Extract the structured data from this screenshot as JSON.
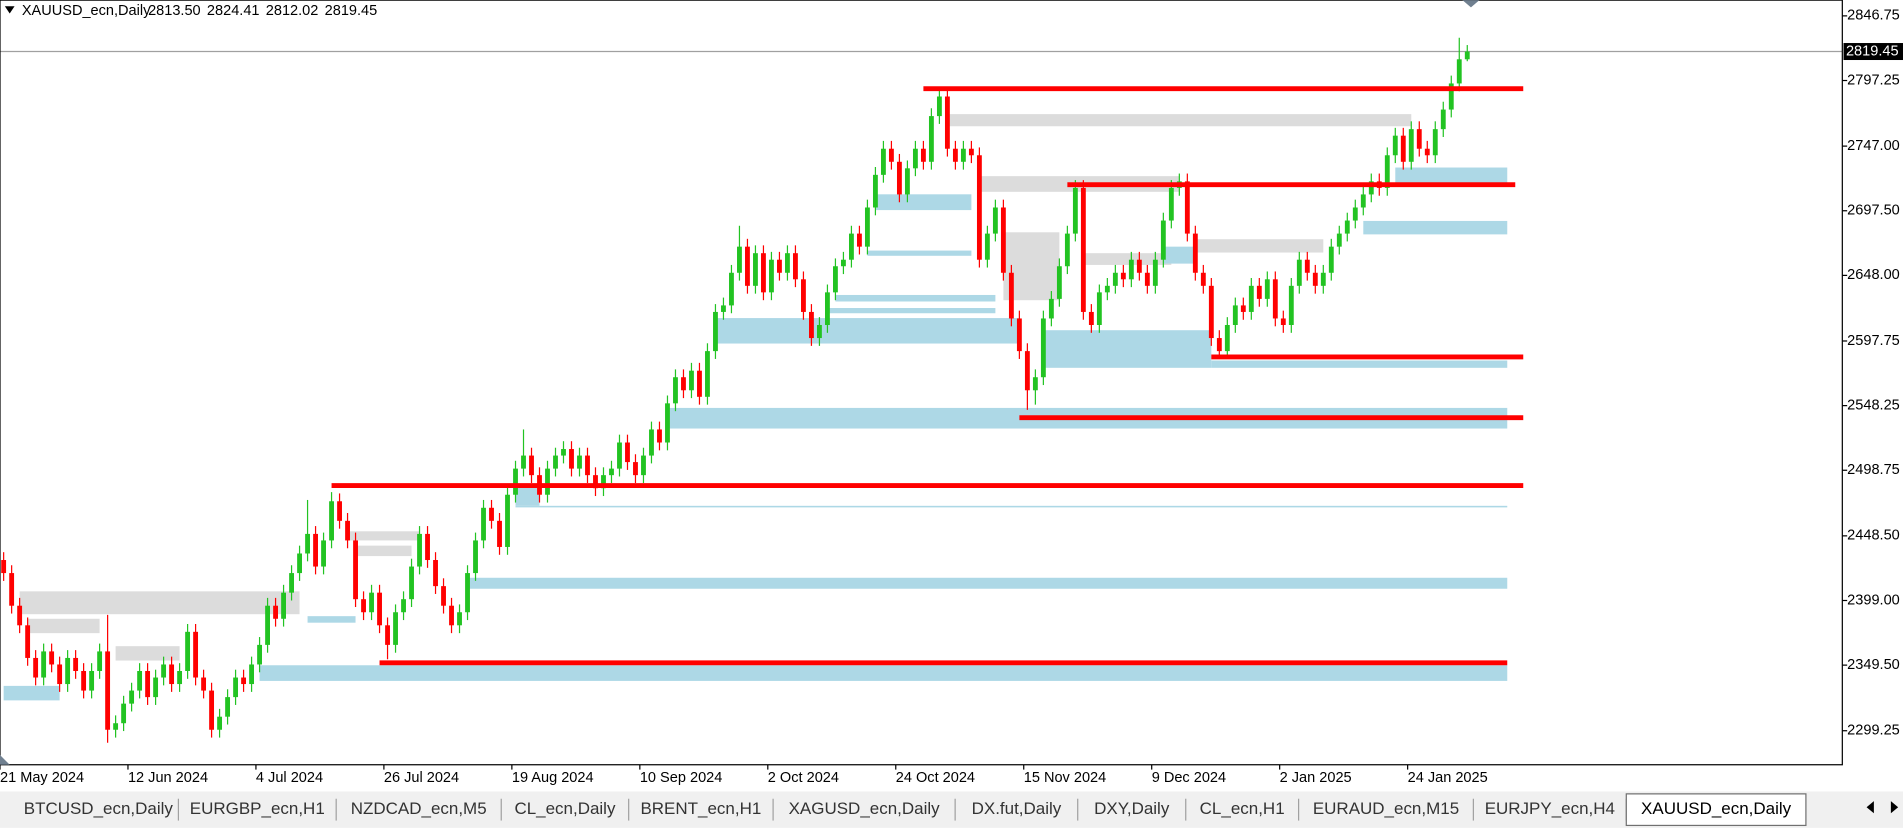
{
  "chart_data": {
    "type": "candlestick",
    "title": "XAUUSD_ecn,Daily",
    "header_values": [
      "2813.50",
      "2824.41",
      "2812.02",
      "2819.45"
    ],
    "up_color": "#22c322",
    "down_color": "#ff0000",
    "ylim": [
      2273.2,
      2858.8
    ],
    "yticks": [
      2846.75,
      2797.25,
      {
        "value": 2747,
        "label": "2747.00"
      },
      {
        "value": 2697.5,
        "label": "2697.50"
      },
      {
        "value": 2648,
        "label": "2648.00"
      },
      2597.75,
      2548.25,
      2498.75,
      {
        "value": 2448.5,
        "label": "2448.50"
      },
      {
        "value": 2399,
        "label": "2399.00"
      },
      {
        "value": 2349.5,
        "label": "2349.50"
      },
      2299.25
    ],
    "current_price": 2819.45,
    "categories": [
      "21 May 2024",
      null,
      null,
      null,
      null,
      null,
      null,
      null,
      null,
      null,
      null,
      null,
      null,
      null,
      null,
      null,
      "12 Jun 2024",
      null,
      null,
      null,
      null,
      null,
      null,
      null,
      null,
      null,
      null,
      null,
      null,
      null,
      null,
      null,
      "4 Jul 2024",
      null,
      null,
      null,
      null,
      null,
      null,
      null,
      null,
      null,
      null,
      null,
      null,
      null,
      null,
      null,
      "26 Jul 2024",
      null,
      null,
      null,
      null,
      null,
      null,
      null,
      null,
      null,
      null,
      null,
      null,
      null,
      null,
      null,
      "19 Aug 2024",
      null,
      null,
      null,
      null,
      null,
      null,
      null,
      null,
      null,
      null,
      null,
      null,
      null,
      null,
      null,
      "10 Sep 2024",
      null,
      null,
      null,
      null,
      null,
      null,
      null,
      null,
      null,
      null,
      null,
      null,
      null,
      null,
      null,
      "2 Oct 2024",
      null,
      null,
      null,
      null,
      null,
      null,
      null,
      null,
      null,
      null,
      null,
      null,
      null,
      null,
      null,
      "24 Oct 2024",
      null,
      null,
      null,
      null,
      null,
      null,
      null,
      null,
      null,
      null,
      null,
      null,
      null,
      null,
      null,
      "15 Nov 2024",
      null,
      null,
      null,
      null,
      null,
      null,
      null,
      null,
      null,
      null,
      null,
      null,
      null,
      null,
      null,
      "9 Dec 2024",
      null,
      null,
      null,
      null,
      null,
      null,
      null,
      null,
      null,
      null,
      null,
      null,
      null,
      null,
      null,
      "2 Jan 2025",
      null,
      null,
      null,
      null,
      null,
      null,
      null,
      null,
      null,
      null,
      null,
      null,
      null,
      null,
      null,
      "24 Jan 2025",
      null,
      null,
      null,
      null,
      null,
      null,
      null
    ],
    "open": [
      2430,
      2420,
      2395,
      2380,
      2355,
      2340,
      2360,
      2350,
      2335,
      2355,
      2345,
      2330,
      2345,
      2360,
      2300,
      2305,
      2320,
      2330,
      2345,
      2325,
      2340,
      2350,
      2335,
      2345,
      2375,
      2340,
      2330,
      2300,
      2310,
      2325,
      2340,
      2335,
      2350,
      2365,
      2395,
      2385,
      2405,
      2420,
      2435,
      2450,
      2425,
      2445,
      2475,
      2460,
      2445,
      2400,
      2390,
      2405,
      2380,
      2365,
      2390,
      2400,
      2425,
      2450,
      2430,
      2410,
      2395,
      2380,
      2390,
      2420,
      2445,
      2470,
      2460,
      2440,
      2480,
      2500,
      2510,
      2495,
      2480,
      2500,
      2510,
      2515,
      2500,
      2510,
      2495,
      2485,
      2495,
      2500,
      2520,
      2505,
      2495,
      2510,
      2530,
      2520,
      2550,
      2570,
      2560,
      2575,
      2555,
      2590,
      2620,
      2625,
      2650,
      2670,
      2640,
      2665,
      2635,
      2660,
      2650,
      2665,
      2645,
      2620,
      2600,
      2610,
      2635,
      2655,
      2660,
      2680,
      2670,
      2700,
      2725,
      2745,
      2735,
      2710,
      2730,
      2745,
      2735,
      2770,
      2785,
      2745,
      2735,
      2745,
      2740,
      2660,
      2680,
      2700,
      2650,
      2615,
      2590,
      2560,
      2570,
      2615,
      2630,
      2655,
      2680,
      2715,
      2620,
      2610,
      2635,
      2640,
      2650,
      2645,
      2660,
      2650,
      2640,
      2660,
      2690,
      2715,
      2720,
      2680,
      2650,
      2640,
      2600,
      2590,
      2610,
      2625,
      2620,
      2640,
      2630,
      2645,
      2615,
      2610,
      2640,
      2660,
      2650,
      2640,
      2650,
      2670,
      2680,
      2690,
      2700,
      2710,
      2720,
      2715,
      2740,
      2755,
      2735,
      2760,
      2745,
      2740,
      2760,
      2775,
      2795,
      2813.5
    ],
    "high": [
      2436,
      2426,
      2401,
      2386,
      2361,
      2366,
      2366,
      2356,
      2361,
      2361,
      2351,
      2351,
      2366,
      2388,
      2311,
      2326,
      2336,
      2351,
      2351,
      2346,
      2356,
      2356,
      2351,
      2381,
      2381,
      2346,
      2336,
      2316,
      2331,
      2346,
      2346,
      2356,
      2371,
      2401,
      2401,
      2411,
      2426,
      2441,
      2476,
      2456,
      2451,
      2482,
      2481,
      2466,
      2451,
      2406,
      2411,
      2411,
      2386,
      2396,
      2406,
      2431,
      2456,
      2456,
      2436,
      2416,
      2401,
      2396,
      2426,
      2451,
      2476,
      2476,
      2466,
      2486,
      2506,
      2530,
      2516,
      2501,
      2506,
      2516,
      2521,
      2521,
      2516,
      2516,
      2501,
      2501,
      2506,
      2526,
      2526,
      2511,
      2516,
      2536,
      2536,
      2556,
      2576,
      2576,
      2581,
      2581,
      2596,
      2626,
      2631,
      2656,
      2686,
      2676,
      2671,
      2671,
      2666,
      2666,
      2671,
      2671,
      2651,
      2626,
      2616,
      2641,
      2661,
      2666,
      2686,
      2686,
      2706,
      2731,
      2751,
      2751,
      2741,
      2736,
      2751,
      2751,
      2776,
      2790,
      2791,
      2751,
      2751,
      2751,
      2746,
      2686,
      2706,
      2706,
      2656,
      2621,
      2596,
      2576,
      2621,
      2636,
      2661,
      2686,
      2721,
      2721,
      2626,
      2641,
      2646,
      2656,
      2656,
      2666,
      2666,
      2656,
      2666,
      2696,
      2721,
      2726,
      2726,
      2686,
      2656,
      2646,
      2606,
      2616,
      2631,
      2631,
      2646,
      2646,
      2651,
      2651,
      2621,
      2646,
      2666,
      2666,
      2656,
      2656,
      2676,
      2686,
      2696,
      2706,
      2716,
      2726,
      2726,
      2746,
      2761,
      2761,
      2766,
      2766,
      2751,
      2766,
      2781,
      2801,
      2830,
      2824.41
    ],
    "low": [
      2414,
      2389,
      2374,
      2349,
      2334,
      2334,
      2344,
      2329,
      2329,
      2339,
      2324,
      2324,
      2339,
      2290,
      2294,
      2299,
      2314,
      2324,
      2319,
      2319,
      2334,
      2329,
      2329,
      2339,
      2334,
      2324,
      2294,
      2294,
      2304,
      2319,
      2329,
      2329,
      2344,
      2359,
      2379,
      2379,
      2399,
      2414,
      2429,
      2419,
      2419,
      2439,
      2454,
      2439,
      2394,
      2384,
      2384,
      2374,
      2354,
      2359,
      2384,
      2394,
      2419,
      2424,
      2404,
      2389,
      2374,
      2374,
      2384,
      2414,
      2439,
      2454,
      2434,
      2434,
      2474,
      2494,
      2489,
      2474,
      2474,
      2494,
      2504,
      2494,
      2494,
      2489,
      2479,
      2479,
      2489,
      2494,
      2499,
      2489,
      2489,
      2504,
      2514,
      2514,
      2544,
      2554,
      2554,
      2549,
      2549,
      2584,
      2614,
      2619,
      2644,
      2634,
      2634,
      2629,
      2629,
      2644,
      2644,
      2639,
      2614,
      2594,
      2594,
      2604,
      2629,
      2649,
      2654,
      2664,
      2664,
      2694,
      2719,
      2729,
      2704,
      2704,
      2724,
      2729,
      2729,
      2764,
      2739,
      2729,
      2729,
      2734,
      2654,
      2654,
      2674,
      2644,
      2609,
      2584,
      2545,
      2549,
      2564,
      2609,
      2624,
      2649,
      2674,
      2614,
      2604,
      2604,
      2629,
      2634,
      2639,
      2639,
      2644,
      2634,
      2634,
      2654,
      2684,
      2709,
      2674,
      2644,
      2634,
      2594,
      2584,
      2584,
      2604,
      2614,
      2614,
      2624,
      2624,
      2609,
      2604,
      2604,
      2634,
      2644,
      2634,
      2634,
      2644,
      2664,
      2674,
      2684,
      2694,
      2704,
      2709,
      2709,
      2734,
      2729,
      2729,
      2739,
      2734,
      2734,
      2754,
      2769,
      2789,
      2812.02
    ],
    "close": [
      2420,
      2395,
      2380,
      2355,
      2340,
      2360,
      2350,
      2335,
      2355,
      2345,
      2330,
      2345,
      2360,
      2300,
      2305,
      2320,
      2330,
      2345,
      2325,
      2340,
      2350,
      2335,
      2345,
      2375,
      2340,
      2330,
      2300,
      2310,
      2325,
      2340,
      2335,
      2350,
      2365,
      2395,
      2385,
      2405,
      2420,
      2435,
      2450,
      2425,
      2445,
      2475,
      2460,
      2445,
      2400,
      2390,
      2405,
      2380,
      2365,
      2390,
      2400,
      2425,
      2450,
      2430,
      2410,
      2395,
      2380,
      2390,
      2420,
      2445,
      2470,
      2460,
      2440,
      2480,
      2500,
      2510,
      2495,
      2480,
      2500,
      2510,
      2515,
      2500,
      2510,
      2495,
      2485,
      2495,
      2500,
      2520,
      2505,
      2495,
      2510,
      2530,
      2520,
      2550,
      2570,
      2560,
      2575,
      2555,
      2590,
      2620,
      2625,
      2650,
      2670,
      2640,
      2665,
      2635,
      2660,
      2650,
      2665,
      2645,
      2620,
      2600,
      2610,
      2635,
      2655,
      2660,
      2680,
      2670,
      2700,
      2725,
      2745,
      2735,
      2710,
      2730,
      2745,
      2735,
      2770,
      2785,
      2745,
      2735,
      2745,
      2740,
      2660,
      2680,
      2700,
      2650,
      2615,
      2590,
      2560,
      2570,
      2615,
      2630,
      2655,
      2680,
      2715,
      2620,
      2610,
      2635,
      2640,
      2650,
      2645,
      2660,
      2650,
      2640,
      2660,
      2690,
      2715,
      2720,
      2680,
      2650,
      2640,
      2600,
      2590,
      2610,
      2625,
      2620,
      2640,
      2630,
      2645,
      2615,
      2610,
      2640,
      2660,
      2650,
      2640,
      2650,
      2670,
      2680,
      2690,
      2700,
      2710,
      2720,
      2715,
      2740,
      2755,
      2735,
      2760,
      2745,
      2740,
      2760,
      2775,
      2795,
      2813.5,
      2819.45
    ],
    "demand_color": "#add8e6",
    "demand_zones": [
      {
        "from": 0,
        "to": 7,
        "low": 2322.5,
        "high": 2333.6
      },
      {
        "from": 32,
        "to": 188,
        "low": 2337.4,
        "high": 2349.4
      },
      {
        "from": 58,
        "to": 188,
        "low": 2408,
        "high": 2416.4
      },
      {
        "from": 64,
        "to": 188,
        "low": 2470.3,
        "high": 2471.5
      },
      {
        "from": 64,
        "to": 67,
        "low": 2471.5,
        "high": 2487
      },
      {
        "from": 83,
        "to": 188,
        "low": 2530.7,
        "high": 2546.5
      },
      {
        "from": 89,
        "to": 127,
        "low": 2595.8,
        "high": 2615.3
      },
      {
        "from": 130,
        "to": 151,
        "low": 2577.2,
        "high": 2606
      },
      {
        "from": 151,
        "to": 188,
        "low": 2577.2,
        "high": 2582.8
      },
      {
        "from": 109,
        "to": 121,
        "low": 2698,
        "high": 2710.1
      },
      {
        "from": 108,
        "to": 121,
        "low": 2663,
        "high": 2667
      },
      {
        "from": 104,
        "to": 124,
        "low": 2628,
        "high": 2633
      },
      {
        "from": 103,
        "to": 124,
        "low": 2619,
        "high": 2623
      },
      {
        "from": 174,
        "to": 188,
        "low": 2715.7,
        "high": 2730.6
      },
      {
        "from": 170,
        "to": 188,
        "low": 2679.4,
        "high": 2689.7
      },
      {
        "from": 38,
        "to": 44,
        "low": 2382,
        "high": 2387
      },
      {
        "from": 145,
        "to": 149,
        "low": 2657,
        "high": 2670
      }
    ],
    "supply_color": "#dcdcdc",
    "supply_zones": [
      {
        "from": 2,
        "to": 37,
        "low": 2388.5,
        "high": 2406
      },
      {
        "from": 3,
        "to": 12,
        "low": 2374,
        "high": 2385
      },
      {
        "from": 14,
        "to": 22,
        "low": 2353,
        "high": 2364
      },
      {
        "from": 43,
        "to": 52,
        "low": 2445,
        "high": 2452
      },
      {
        "from": 44,
        "to": 51,
        "low": 2433,
        "high": 2441
      },
      {
        "from": 118,
        "to": 176,
        "low": 2762.2,
        "high": 2771.5
      },
      {
        "from": 122,
        "to": 147,
        "low": 2712,
        "high": 2724
      },
      {
        "from": 125,
        "to": 132,
        "low": 2629,
        "high": 2681
      },
      {
        "from": 135,
        "to": 146,
        "low": 2656,
        "high": 2665
      },
      {
        "from": 149,
        "to": 165,
        "low": 2665.5,
        "high": 2675.7
      }
    ],
    "level_color": "#ff0000",
    "levels": [
      {
        "from": 115,
        "to": 190,
        "price": 2791
      },
      {
        "from": 133,
        "to": 189,
        "price": 2717.5
      },
      {
        "from": 151,
        "to": 190,
        "price": 2585.5
      },
      {
        "from": 127,
        "to": 190,
        "price": 2539
      },
      {
        "from": 41,
        "to": 190,
        "price": 2487
      },
      {
        "from": 47,
        "to": 188,
        "price": 2351.3
      }
    ]
  },
  "tabs": [
    {
      "label": "BTCUSD_ecn,Daily"
    },
    {
      "label": "EURGBP_ecn,H1"
    },
    {
      "label": "NZDCAD_ecn,M5"
    },
    {
      "label": "CL_ecn,Daily"
    },
    {
      "label": "BRENT_ecn,H1"
    },
    {
      "label": "XAGUSD_ecn,Daily"
    },
    {
      "label": "DX.fut,Daily"
    },
    {
      "label": "DXY,Daily"
    },
    {
      "label": "CL_ecn,H1"
    },
    {
      "label": "EURAUD_ecn,M15"
    },
    {
      "label": "EURJPY_ecn,H4"
    },
    {
      "label": "XAUUSD_ecn,Daily",
      "active": true
    }
  ]
}
